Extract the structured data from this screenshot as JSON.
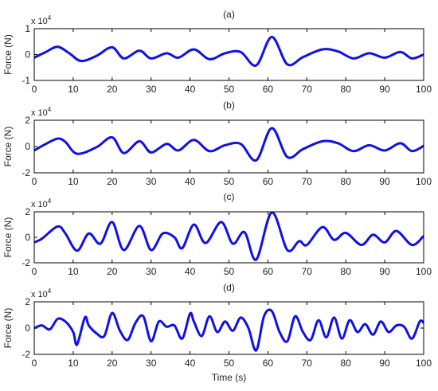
{
  "colors": {
    "line": "#1010e8",
    "axis": "#000000",
    "text": "#222222"
  },
  "chart_data": [
    {
      "type": "line",
      "title": "(a)",
      "ylabel": "Force (N)",
      "exponent_label": "x 10",
      "exponent_power": "4",
      "xlim": [
        0,
        100
      ],
      "ylim": [
        -1,
        1
      ],
      "xticks": [
        0,
        10,
        20,
        30,
        40,
        50,
        60,
        70,
        80,
        90,
        100
      ],
      "yticks": [
        -1,
        0,
        1
      ],
      "series": [
        {
          "x": [
            0,
            3,
            6,
            9,
            12,
            16,
            20,
            23,
            27,
            30,
            34,
            37,
            41,
            45,
            49,
            53,
            57,
            61,
            65,
            69,
            74,
            78,
            82,
            86,
            90,
            94,
            97,
            100
          ],
          "values": [
            -0.12,
            0.1,
            0.3,
            0.05,
            -0.25,
            -0.05,
            0.28,
            -0.15,
            0.15,
            -0.15,
            0.05,
            -0.12,
            0.2,
            -0.18,
            0.05,
            0.1,
            -0.42,
            0.68,
            -0.38,
            -0.1,
            0.2,
            0.12,
            -0.15,
            0.05,
            -0.12,
            0.1,
            -0.15,
            0.0
          ]
        }
      ]
    },
    {
      "type": "line",
      "title": "(b)",
      "ylabel": "Force (N)",
      "exponent_label": "x 10",
      "exponent_power": "4",
      "xlim": [
        0,
        100
      ],
      "ylim": [
        -2,
        2
      ],
      "xticks": [
        0,
        10,
        20,
        30,
        40,
        50,
        60,
        70,
        80,
        90,
        100
      ],
      "yticks": [
        -2,
        0,
        2
      ],
      "series": [
        {
          "x": [
            0,
            3,
            6,
            8,
            11,
            16,
            20,
            23,
            27,
            30,
            34,
            37,
            41,
            45,
            49,
            53,
            57,
            61,
            65,
            69,
            74,
            78,
            82,
            86,
            90,
            94,
            97,
            100
          ],
          "values": [
            -0.3,
            0.2,
            0.6,
            0.35,
            -0.55,
            -0.05,
            0.7,
            -0.5,
            0.4,
            -0.45,
            0.2,
            -0.3,
            0.5,
            -0.35,
            0.1,
            0.2,
            -1.05,
            1.4,
            -0.8,
            -0.2,
            0.4,
            0.25,
            -0.35,
            0.1,
            -0.3,
            0.25,
            -0.35,
            0.05
          ]
        }
      ]
    },
    {
      "type": "line",
      "title": "(c)",
      "ylabel": "Force (N)",
      "exponent_label": "x 10",
      "exponent_power": "4",
      "xlim": [
        0,
        100
      ],
      "ylim": [
        -2,
        2
      ],
      "xticks": [
        0,
        10,
        20,
        30,
        40,
        50,
        60,
        70,
        80,
        90,
        100
      ],
      "yticks": [
        -2,
        0,
        2
      ],
      "series": [
        {
          "x": [
            0,
            2,
            6,
            8,
            11,
            14,
            17,
            20,
            23,
            27,
            30,
            33,
            36,
            38,
            41,
            44,
            48,
            51,
            54,
            57,
            61,
            65,
            68,
            70,
            74,
            77,
            80,
            84,
            87,
            90,
            93,
            97,
            100
          ],
          "values": [
            -0.4,
            -0.1,
            0.85,
            0.3,
            -1.05,
            0.3,
            -0.5,
            1.2,
            -1.0,
            0.9,
            -1.0,
            0.3,
            0.0,
            -0.85,
            1.0,
            -0.45,
            1.2,
            -0.5,
            0.4,
            -1.75,
            1.95,
            -1.0,
            -0.3,
            -0.6,
            0.8,
            -0.2,
            0.35,
            -0.6,
            0.2,
            -0.4,
            0.5,
            -0.6,
            0.1
          ]
        }
      ]
    },
    {
      "type": "line",
      "title": "(d)",
      "ylabel": "Force (N)",
      "xlabel": "Time (s)",
      "exponent_label": "x 10",
      "exponent_power": "4",
      "xlim": [
        0,
        100
      ],
      "ylim": [
        -2,
        2
      ],
      "xticks": [
        0,
        10,
        20,
        30,
        40,
        50,
        60,
        70,
        80,
        90,
        100
      ],
      "yticks": [
        -2,
        0,
        2
      ],
      "series": [
        {
          "x": [
            0,
            2,
            4,
            6,
            8,
            10,
            11,
            13,
            14,
            16,
            18,
            20,
            22,
            24,
            26,
            28,
            30,
            32,
            34,
            36,
            38,
            40,
            41,
            43,
            45,
            47,
            49,
            51,
            53,
            55,
            57,
            59,
            61,
            63,
            65,
            67,
            69,
            71,
            73,
            75,
            77,
            79,
            81,
            83,
            85,
            87,
            89,
            91,
            93,
            95,
            97,
            99,
            100
          ],
          "values": [
            0.0,
            0.2,
            -0.1,
            0.7,
            0.5,
            -0.3,
            -1.25,
            0.8,
            0.2,
            -0.4,
            -0.6,
            1.15,
            -0.2,
            -0.9,
            0.4,
            0.9,
            -1.0,
            0.5,
            0.1,
            0.2,
            -0.8,
            1.1,
            0.5,
            -0.6,
            0.9,
            -0.3,
            0.5,
            -0.2,
            0.8,
            0.0,
            -1.7,
            0.9,
            1.3,
            -0.3,
            -1.0,
            0.9,
            -0.3,
            -0.9,
            0.6,
            -0.7,
            0.8,
            -0.8,
            0.6,
            -0.3,
            0.3,
            -0.5,
            0.5,
            -0.3,
            0.2,
            0.1,
            -0.8,
            0.5,
            0.4
          ]
        }
      ]
    }
  ]
}
